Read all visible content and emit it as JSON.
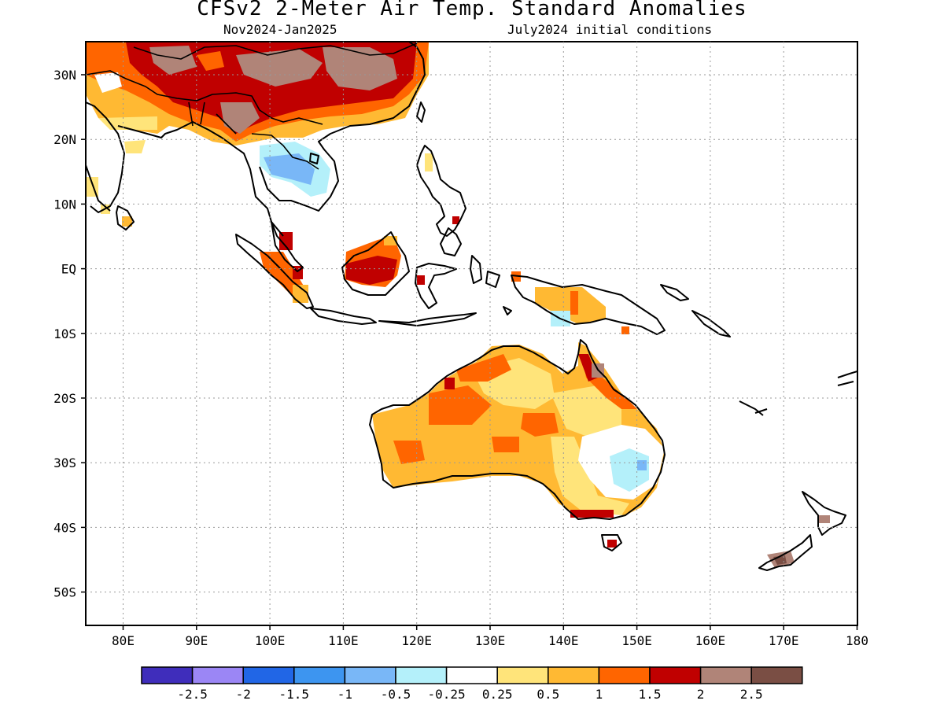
{
  "title": "CFSv2 2-Meter Air Temp. Standard Anomalies",
  "subtitle_left": "Nov2024-Jan2025",
  "subtitle_right": "July2024 initial conditions",
  "lat_labels": [
    "30N",
    "20N",
    "10N",
    "EQ",
    "10S",
    "20S",
    "30S",
    "40S",
    "50S"
  ],
  "lon_labels": [
    "80E",
    "90E",
    "100E",
    "110E",
    "120E",
    "130E",
    "140E",
    "150E",
    "160E",
    "170E",
    "180"
  ],
  "colorbar": {
    "colors": [
      "#3f2dbb",
      "#9b86f5",
      "#2166e6",
      "#3d95f0",
      "#79b7f7",
      "#b4f0fa",
      "#ffffff",
      "#ffe47a",
      "#ffb933",
      "#ff6500",
      "#c00000",
      "#b08478",
      "#7a4e44"
    ],
    "labels": [
      "-2.5",
      "-2",
      "-1.5",
      "-1",
      "-0.5",
      "-0.25",
      "0.25",
      "0.5",
      "1",
      "1.5",
      "2",
      "2.5"
    ]
  }
}
